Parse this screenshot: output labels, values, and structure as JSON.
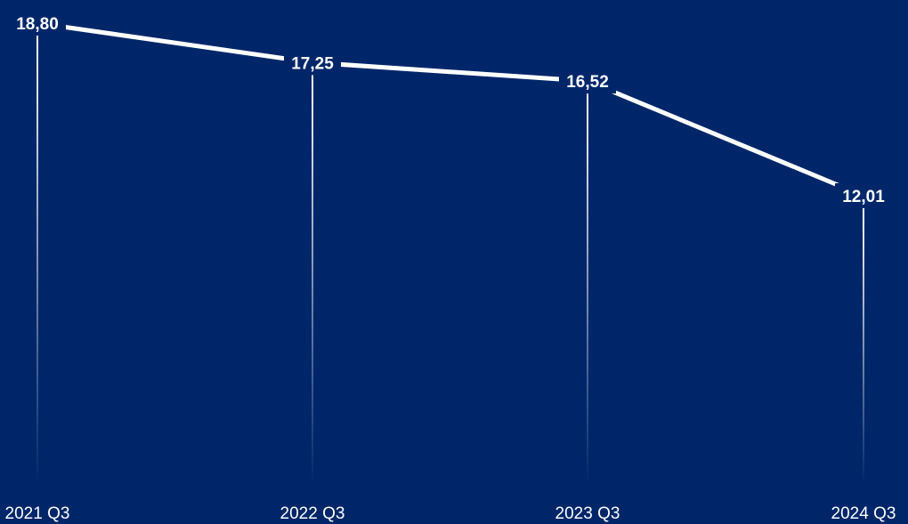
{
  "colors": {
    "background": "#00266A",
    "line": "#FFFFFF",
    "text": "#FFFFFF"
  },
  "chart_data": {
    "type": "line",
    "categories": [
      "2021 Q3",
      "2022 Q3",
      "2023 Q3",
      "2024 Q3"
    ],
    "values": [
      18.8,
      17.25,
      16.52,
      12.01
    ],
    "data_labels": [
      "18,80",
      "17,25",
      "16,52",
      "12,01"
    ],
    "title": "",
    "xlabel": "",
    "ylabel": "",
    "grid": false,
    "legend": "none"
  }
}
